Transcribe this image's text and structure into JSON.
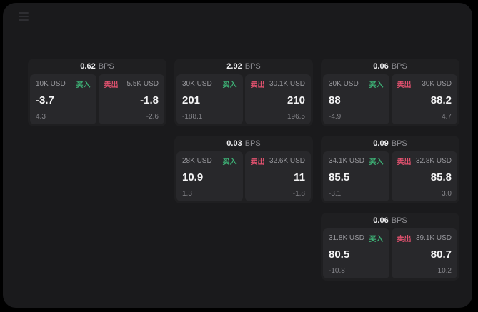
{
  "labels": {
    "buy": "买入",
    "sell": "卖出",
    "bps_unit": "BPS"
  },
  "colors": {
    "buy_green": "#3eb377",
    "sell_red": "#e0516e",
    "panel_bg": "#1a1a1c",
    "card_bg": "#1f1f21",
    "subcard_bg": "#28282b"
  },
  "cards": [
    {
      "bps": "0.62",
      "buy": {
        "size": "10K USD",
        "value": "-3.7",
        "delta": "4.3"
      },
      "sell": {
        "size": "5.5K USD",
        "value": "-1.8",
        "delta": "-2.6"
      }
    },
    {
      "bps": "2.92",
      "buy": {
        "size": "30K USD",
        "value": "201",
        "delta": "-188.1"
      },
      "sell": {
        "size": "30.1K USD",
        "value": "210",
        "delta": "196.5"
      }
    },
    {
      "bps": "0.06",
      "buy": {
        "size": "30K USD",
        "value": "88",
        "delta": "-4.9"
      },
      "sell": {
        "size": "30K USD",
        "value": "88.2",
        "delta": "4.7"
      }
    },
    {
      "bps": "0.03",
      "buy": {
        "size": "28K USD",
        "value": "10.9",
        "delta": "1.3"
      },
      "sell": {
        "size": "32.6K USD",
        "value": "11",
        "delta": "-1.8"
      }
    },
    {
      "bps": "0.09",
      "buy": {
        "size": "34.1K USD",
        "value": "85.5",
        "delta": "-3.1"
      },
      "sell": {
        "size": "32.8K USD",
        "value": "85.8",
        "delta": "3.0"
      }
    },
    {
      "bps": "0.06",
      "buy": {
        "size": "31.8K USD",
        "value": "80.5",
        "delta": "-10.8"
      },
      "sell": {
        "size": "39.1K USD",
        "value": "80.7",
        "delta": "10.2"
      }
    }
  ]
}
